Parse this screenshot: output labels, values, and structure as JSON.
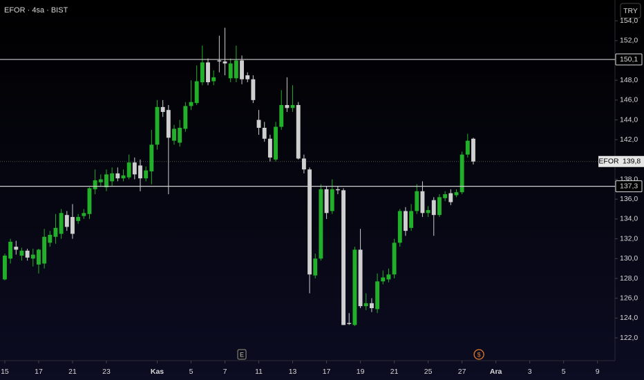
{
  "chart_data": {
    "type": "candlestick",
    "title": "EFOR · 4sa · BIST",
    "currency": "TRY",
    "up_color": "#22b02a",
    "down_color": "#cfcfcf",
    "open": [
      127.9,
      130,
      131.2,
      130.3,
      130.8,
      130,
      129.4,
      129.5,
      131.6,
      132.2,
      132.5,
      134.4,
      134.2,
      133.8,
      134.3,
      134.5,
      137,
      137.7,
      137.2,
      137.8,
      138.6,
      138.1,
      138.2,
      139.7,
      139.4,
      138.1,
      138.8,
      141.5,
      145.3,
      145,
      141.9,
      141.7,
      143.1,
      145.4,
      145.7,
      147.8,
      149.8,
      147.9,
      150,
      149.9,
      148.2,
      148.2,
      150,
      148.5,
      148.1,
      144,
      143.2,
      142.1,
      140,
      143.3,
      145.5,
      145.2,
      145.5,
      140.1,
      139,
      128.3,
      130,
      137,
      134.8,
      137,
      136.9,
      123.5,
      123.3,
      130.9,
      125.2,
      125.5,
      124.9,
      127.7,
      127.9,
      128.4,
      131.6,
      134.8,
      133.1,
      134.8,
      136.8,
      134.6,
      135.9,
      134.4,
      136.1,
      136.6,
      136.4,
      136.7,
      140.5,
      142.1
    ],
    "high": [
      130.5,
      132,
      131.8,
      131.1,
      131,
      131,
      131,
      133,
      132.8,
      134.5,
      135,
      134.8,
      135.5,
      134.5,
      135,
      137.2,
      139,
      138.5,
      139,
      139.2,
      139.2,
      139,
      140.5,
      140.2,
      140,
      139.3,
      143,
      146,
      146,
      145.5,
      143.5,
      144,
      145.8,
      148,
      149.5,
      151.5,
      150.2,
      149,
      152.5,
      153.3,
      150.2,
      151.5,
      150.5,
      148.8,
      148.5,
      145,
      143.8,
      142.5,
      143.8,
      147,
      148.3,
      147.5,
      145.8,
      140.5,
      139.2,
      130.5,
      137.5,
      137.3,
      138,
      137.3,
      137.1,
      124.5,
      131.2,
      133,
      126.5,
      126,
      128.5,
      128.8,
      129,
      132,
      135,
      135.2,
      135.5,
      137.5,
      137.8,
      135.3,
      136.2,
      136.5,
      136.8,
      137,
      137,
      140.8,
      142.6,
      142.2
    ],
    "low": [
      127.8,
      129.5,
      130.4,
      129.8,
      129.8,
      129.2,
      128.5,
      129,
      131.2,
      131.5,
      132,
      132.8,
      132,
      133.5,
      134,
      134,
      136.5,
      137.3,
      136.8,
      137.3,
      137.8,
      137.8,
      138,
      138,
      136.8,
      137.8,
      137.5,
      141,
      144.3,
      136.5,
      141.5,
      141.3,
      142.8,
      145,
      145.5,
      147.5,
      147.5,
      147.5,
      148.8,
      148.5,
      147.8,
      147.8,
      147.6,
      147.8,
      145.7,
      142.5,
      141.8,
      139.8,
      139.8,
      143,
      144.8,
      144.8,
      140,
      138.6,
      126.5,
      128,
      129.8,
      134,
      134.5,
      136.5,
      123.3,
      123.3,
      123.2,
      125,
      124.8,
      124.6,
      124.5,
      127.4,
      127.6,
      128,
      131.2,
      132.3,
      132.8,
      134.5,
      134.2,
      134.2,
      132.3,
      134.2,
      135.8,
      135.4,
      136.2,
      136.5,
      140.2,
      139.5
    ],
    "close": [
      130.3,
      131.7,
      130.9,
      130.8,
      130.1,
      130.4,
      130.9,
      132.2,
      132.4,
      133.1,
      134.6,
      133.2,
      132.5,
      134.2,
      134.6,
      137.1,
      137.9,
      138,
      138.5,
      138.6,
      138.1,
      138.4,
      139.7,
      138.5,
      138.1,
      138.9,
      141.5,
      145.3,
      144.8,
      142.2,
      143.1,
      143.2,
      145.4,
      145.8,
      147.9,
      149.8,
      147.8,
      148.3,
      149.9,
      149.7,
      149.7,
      150,
      148.1,
      148.1,
      146,
      143.2,
      142.1,
      140.2,
      143.3,
      145.5,
      145.2,
      145.5,
      140.1,
      139,
      128.4,
      130,
      137,
      134.6,
      137,
      136.9,
      123.3,
      123.4,
      130.9,
      125.2,
      125.5,
      125,
      127.7,
      128.1,
      128.4,
      131.6,
      134.8,
      132.8,
      134.8,
      136.8,
      134.6,
      134.9,
      134.4,
      136.2,
      136.5,
      135.7,
      136.7,
      140.5,
      141.9,
      139.8
    ],
    "xlim": [
      -0.85,
      108.1
    ],
    "xticks": [
      {
        "value": 0,
        "label": "15"
      },
      {
        "value": 6,
        "label": "17"
      },
      {
        "value": 12,
        "label": "21"
      },
      {
        "value": 18,
        "label": "23"
      },
      {
        "value": 27,
        "label": "Kas"
      },
      {
        "value": 33,
        "label": "5"
      },
      {
        "value": 39,
        "label": "7"
      },
      {
        "value": 45,
        "label": "11"
      },
      {
        "value": 51,
        "label": "13"
      },
      {
        "value": 57,
        "label": "17"
      },
      {
        "value": 63,
        "label": "19"
      },
      {
        "value": 69,
        "label": "21"
      },
      {
        "value": 75,
        "label": "25"
      },
      {
        "value": 81,
        "label": "27"
      },
      {
        "value": 87,
        "label": "Ara"
      },
      {
        "value": 93,
        "label": "3"
      },
      {
        "value": 99,
        "label": "5"
      },
      {
        "value": 105,
        "label": "9"
      }
    ],
    "ylim": [
      119.7,
      156.1
    ],
    "yticks": [
      {
        "value": 154,
        "label": "154,0"
      },
      {
        "value": 152,
        "label": "152,0"
      },
      {
        "value": 148,
        "label": "148,0"
      },
      {
        "value": 146,
        "label": "146,0"
      },
      {
        "value": 144,
        "label": "144,0"
      },
      {
        "value": 142,
        "label": "142,0"
      },
      {
        "value": 138,
        "label": "138,0"
      },
      {
        "value": 136,
        "label": "136,0"
      },
      {
        "value": 134,
        "label": "134,0"
      },
      {
        "value": 132,
        "label": "132,0"
      },
      {
        "value": 130,
        "label": "130,0"
      },
      {
        "value": 128,
        "label": "128,0"
      },
      {
        "value": 126,
        "label": "126,0"
      },
      {
        "value": 124,
        "label": "124,0"
      },
      {
        "value": 122,
        "label": "122,0"
      }
    ],
    "hlines": [
      {
        "value": 150.1,
        "label": "150,1"
      },
      {
        "value": 137.3,
        "label": "137,3"
      }
    ],
    "last_price": {
      "symbol": "EFOR",
      "value": 139.8,
      "label": "139,8"
    },
    "events": [
      {
        "label": "E",
        "x": 42
      },
      {
        "label": "$",
        "x": 84
      }
    ]
  }
}
